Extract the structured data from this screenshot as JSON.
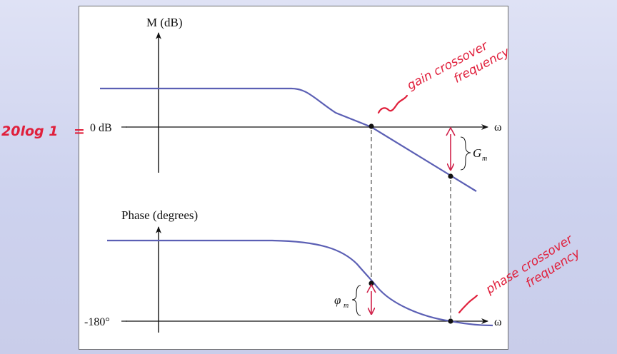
{
  "magnitude_plot": {
    "y_axis_label": "M (dB)",
    "reference_label": "0 dB",
    "x_axis_label": "ω",
    "margin_label": "G",
    "margin_subscript": "m"
  },
  "phase_plot": {
    "y_axis_label": "Phase (degrees)",
    "reference_label": "-180°",
    "x_axis_label": "ω",
    "margin_label": "φ",
    "margin_subscript": "m"
  },
  "annotations": {
    "left_note": "20log 1",
    "left_equals": "=",
    "gain_crossover_line1": "gain crossover",
    "gain_crossover_line2": "frequency",
    "phase_crossover_line1": "phase crossover",
    "phase_crossover_line2": "frequency"
  },
  "colors": {
    "curve": "#5b5fb4",
    "margin_arrow": "#d0214a",
    "handwriting": "#e0203c",
    "axis": "#111111"
  }
}
